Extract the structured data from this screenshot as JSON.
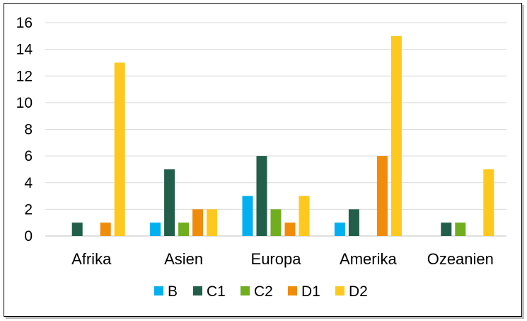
{
  "chart_data": {
    "type": "bar",
    "categories": [
      "Afrika",
      "Asien",
      "Europa",
      "Amerika",
      "Ozeanien"
    ],
    "series": [
      {
        "name": "B",
        "color": "#00b0f0",
        "values": [
          0,
          1,
          3,
          1,
          0
        ]
      },
      {
        "name": "C1",
        "color": "#215f4b",
        "values": [
          1,
          5,
          6,
          2,
          1
        ]
      },
      {
        "name": "C2",
        "color": "#70ad1f",
        "values": [
          0,
          1,
          2,
          0,
          1
        ]
      },
      {
        "name": "D1",
        "color": "#f08c0a",
        "values": [
          1,
          2,
          1,
          6,
          0
        ]
      },
      {
        "name": "D2",
        "color": "#ffc81e",
        "values": [
          13,
          2,
          3,
          15,
          5
        ]
      }
    ],
    "ylim": [
      0,
      16
    ],
    "yticks": [
      0,
      2,
      4,
      6,
      8,
      10,
      12,
      14,
      16
    ],
    "grid": true,
    "legend_position": "bottom",
    "title": "",
    "xlabel": "",
    "ylabel": ""
  }
}
